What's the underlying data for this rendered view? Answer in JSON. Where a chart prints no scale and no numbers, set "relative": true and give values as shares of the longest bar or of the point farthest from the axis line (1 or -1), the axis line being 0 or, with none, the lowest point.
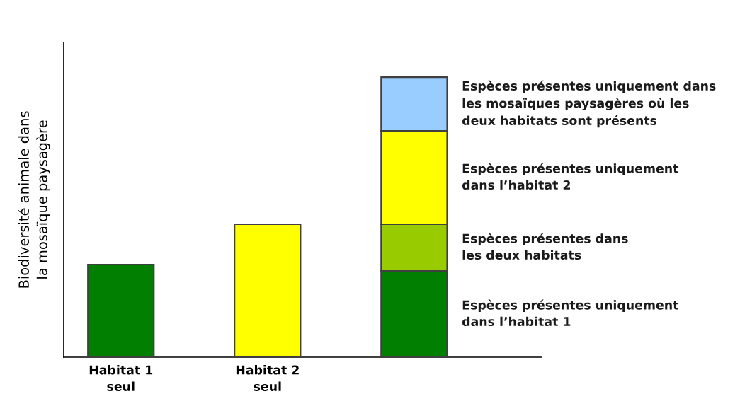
{
  "chart_data": {
    "type": "bar",
    "stacked": true,
    "relative": true,
    "ylabel": "Biodiversité animale dans\nla mosaïque paysagère",
    "categories": [
      "Habitat 1\nseul",
      "Habitat 2\nseul",
      null
    ],
    "series": [
      {
        "name": "Espèces présentes uniquement\ndans l’habitat 1",
        "color": "#007f00",
        "values": [
          0.331,
          null,
          0.308
        ]
      },
      {
        "name": "Espèces présentes dans\nles deux habitats",
        "color": "#99cc00",
        "values": [
          null,
          null,
          0.167
        ]
      },
      {
        "name": "Espèces présentes uniquement\ndans l’habitat 2",
        "color": "#ffff00",
        "values": [
          null,
          0.475,
          0.333
        ]
      },
      {
        "name": "Espèces présentes uniquement dans\nles mosaïques paysagères où les\ndeux habitats sont présents",
        "color": "#99ccff",
        "values": [
          null,
          null,
          0.192
        ]
      }
    ],
    "grid": false,
    "legend": false
  }
}
